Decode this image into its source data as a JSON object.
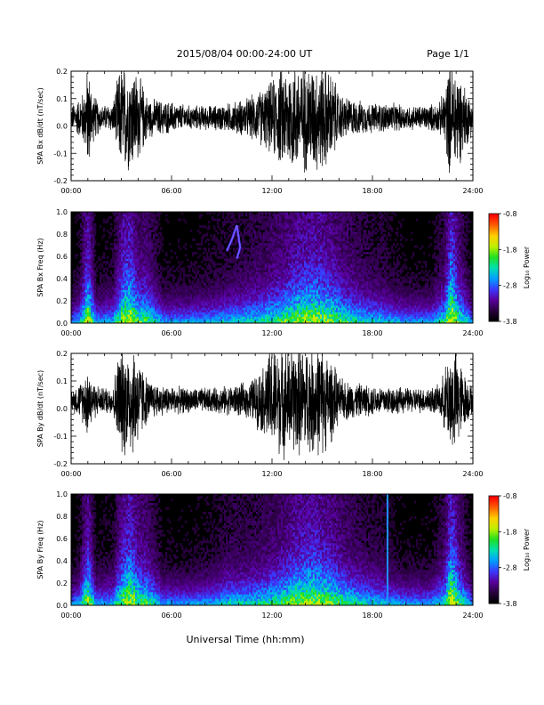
{
  "header": {
    "date_range": "2015/08/04  00:00-24:00 UT",
    "page": "Page 1/1"
  },
  "footer": {
    "xlabel": "Universal Time (hh:mm)"
  },
  "colorbar": {
    "label": "Log₁₀ Power",
    "ticks": [
      "-0.8",
      "-1.8",
      "-2.8",
      "-3.8"
    ],
    "tick_values": [
      -0.8,
      -1.8,
      -2.8,
      -3.8
    ],
    "range": [
      -3.8,
      -0.8
    ],
    "colors": [
      "#000000",
      "#2a0040",
      "#5a00a0",
      "#3a3aff",
      "#00a0ff",
      "#00e0b0",
      "#20e020",
      "#c0f000",
      "#ffd000",
      "#ff6000",
      "#ff0000"
    ]
  },
  "chart_data": [
    {
      "type": "line",
      "ylabel": "SPA Bx dB/dt (nT/sec)",
      "xlim": [
        "00:00",
        "24:00"
      ],
      "ylim": [
        -0.2,
        0.2
      ],
      "x_ticks": [
        "00:00",
        "06:00",
        "12:00",
        "18:00",
        "24:00"
      ],
      "y_ticks": [
        "-0.2",
        "-0.1",
        "0.0",
        "0.1",
        "0.2"
      ],
      "y_tick_values": [
        -0.2,
        -0.1,
        0.0,
        0.1,
        0.2
      ],
      "envelope": {
        "hours": [
          0,
          0.5,
          0.8,
          1.0,
          1.3,
          1.8,
          2.5,
          2.9,
          3.3,
          3.8,
          4.2,
          4.6,
          5.5,
          7,
          8.5,
          9.5,
          10.5,
          11,
          11.5,
          12,
          12.5,
          13,
          14,
          15,
          15.6,
          16,
          17,
          18,
          19,
          20,
          21,
          22,
          22.3,
          22.6,
          23,
          23.4,
          24
        ],
        "amplitude": [
          0.05,
          0.08,
          0.12,
          0.22,
          0.1,
          0.05,
          0.06,
          0.2,
          0.22,
          0.2,
          0.15,
          0.08,
          0.07,
          0.05,
          0.05,
          0.06,
          0.08,
          0.1,
          0.12,
          0.15,
          0.2,
          0.22,
          0.22,
          0.22,
          0.18,
          0.1,
          0.07,
          0.06,
          0.06,
          0.05,
          0.05,
          0.06,
          0.12,
          0.22,
          0.22,
          0.15,
          0.06
        ]
      }
    },
    {
      "type": "heatmap",
      "ylabel": "SPA Bx Freq (Hz)",
      "xlim": [
        "00:00",
        "24:00"
      ],
      "ylim": [
        0.0,
        1.0
      ],
      "x_ticks": [
        "00:00",
        "06:00",
        "12:00",
        "18:00",
        "24:00"
      ],
      "y_ticks": [
        "0.0",
        "0.2",
        "0.4",
        "0.6",
        "0.8",
        "1.0"
      ],
      "y_tick_values": [
        0.0,
        0.2,
        0.4,
        0.6,
        0.8,
        1.0
      ],
      "value_range": [
        -3.8,
        -0.8
      ],
      "activity": {
        "hours": [
          0,
          0.5,
          1.0,
          1.5,
          2.5,
          3.0,
          3.5,
          4.0,
          4.5,
          5.5,
          7,
          8.5,
          9.5,
          10.5,
          11.5,
          12.5,
          13.5,
          14.5,
          15.5,
          16.5,
          17.5,
          18.5,
          20,
          21.5,
          22.3,
          22.7,
          23.2,
          24
        ],
        "level": [
          0.25,
          0.35,
          0.85,
          0.3,
          0.35,
          0.75,
          0.9,
          0.6,
          0.6,
          0.3,
          0.3,
          0.35,
          0.4,
          0.45,
          0.5,
          0.6,
          0.75,
          0.8,
          0.7,
          0.55,
          0.45,
          0.4,
          0.3,
          0.3,
          0.5,
          1.0,
          0.6,
          0.25
        ]
      },
      "feature": {
        "hours": [
          9.3,
          9.6,
          9.9,
          10.1,
          9.9
        ],
        "freq": [
          0.65,
          0.75,
          0.88,
          0.68,
          0.58
        ]
      }
    },
    {
      "type": "line",
      "ylabel": "SPA By dB/dt (nT/sec)",
      "xlim": [
        "00:00",
        "24:00"
      ],
      "ylim": [
        -0.2,
        0.2
      ],
      "x_ticks": [
        "00:00",
        "06:00",
        "12:00",
        "18:00",
        "24:00"
      ],
      "y_ticks": [
        "-0.2",
        "-0.1",
        "0.0",
        "0.1",
        "0.2"
      ],
      "y_tick_values": [
        -0.2,
        -0.1,
        0.0,
        0.1,
        0.2
      ],
      "envelope": {
        "hours": [
          0,
          0.5,
          0.8,
          1.0,
          1.3,
          1.8,
          2.5,
          2.9,
          3.3,
          3.8,
          4.2,
          4.6,
          5.5,
          7,
          8.5,
          9.5,
          10.5,
          11,
          11.5,
          12,
          12.5,
          13,
          14,
          15,
          15.6,
          16,
          17,
          18,
          19,
          20,
          21,
          22,
          22.3,
          22.6,
          23,
          23.4,
          24
        ],
        "amplitude": [
          0.04,
          0.07,
          0.1,
          0.15,
          0.08,
          0.05,
          0.06,
          0.22,
          0.22,
          0.22,
          0.15,
          0.08,
          0.06,
          0.05,
          0.05,
          0.06,
          0.07,
          0.1,
          0.14,
          0.22,
          0.22,
          0.22,
          0.22,
          0.22,
          0.16,
          0.09,
          0.07,
          0.06,
          0.06,
          0.05,
          0.05,
          0.06,
          0.12,
          0.2,
          0.22,
          0.12,
          0.05
        ]
      }
    },
    {
      "type": "heatmap",
      "ylabel": "SPA By Freq (Hz)",
      "xlim": [
        "00:00",
        "24:00"
      ],
      "ylim": [
        0.0,
        1.0
      ],
      "x_ticks": [
        "00:00",
        "06:00",
        "12:00",
        "18:00",
        "24:00"
      ],
      "y_ticks": [
        "0.0",
        "0.2",
        "0.4",
        "0.6",
        "0.8",
        "1.0"
      ],
      "y_tick_values": [
        0.0,
        0.2,
        0.4,
        0.6,
        0.8,
        1.0
      ],
      "value_range": [
        -3.8,
        -0.8
      ],
      "activity": {
        "hours": [
          0,
          0.5,
          1.0,
          1.5,
          2.5,
          3.0,
          3.5,
          4.0,
          4.5,
          5.5,
          7,
          8.5,
          9.5,
          10.5,
          11.5,
          12.5,
          13.5,
          14.5,
          15.5,
          16.5,
          17.5,
          18.5,
          20,
          21.5,
          22.3,
          22.7,
          23.2,
          24
        ],
        "level": [
          0.25,
          0.35,
          0.8,
          0.3,
          0.35,
          0.7,
          0.9,
          0.65,
          0.6,
          0.3,
          0.3,
          0.35,
          0.45,
          0.45,
          0.5,
          0.6,
          0.75,
          0.8,
          0.7,
          0.55,
          0.45,
          0.4,
          0.3,
          0.3,
          0.5,
          1.0,
          0.6,
          0.25
        ]
      },
      "vertical_line_hour": 18.9
    }
  ]
}
